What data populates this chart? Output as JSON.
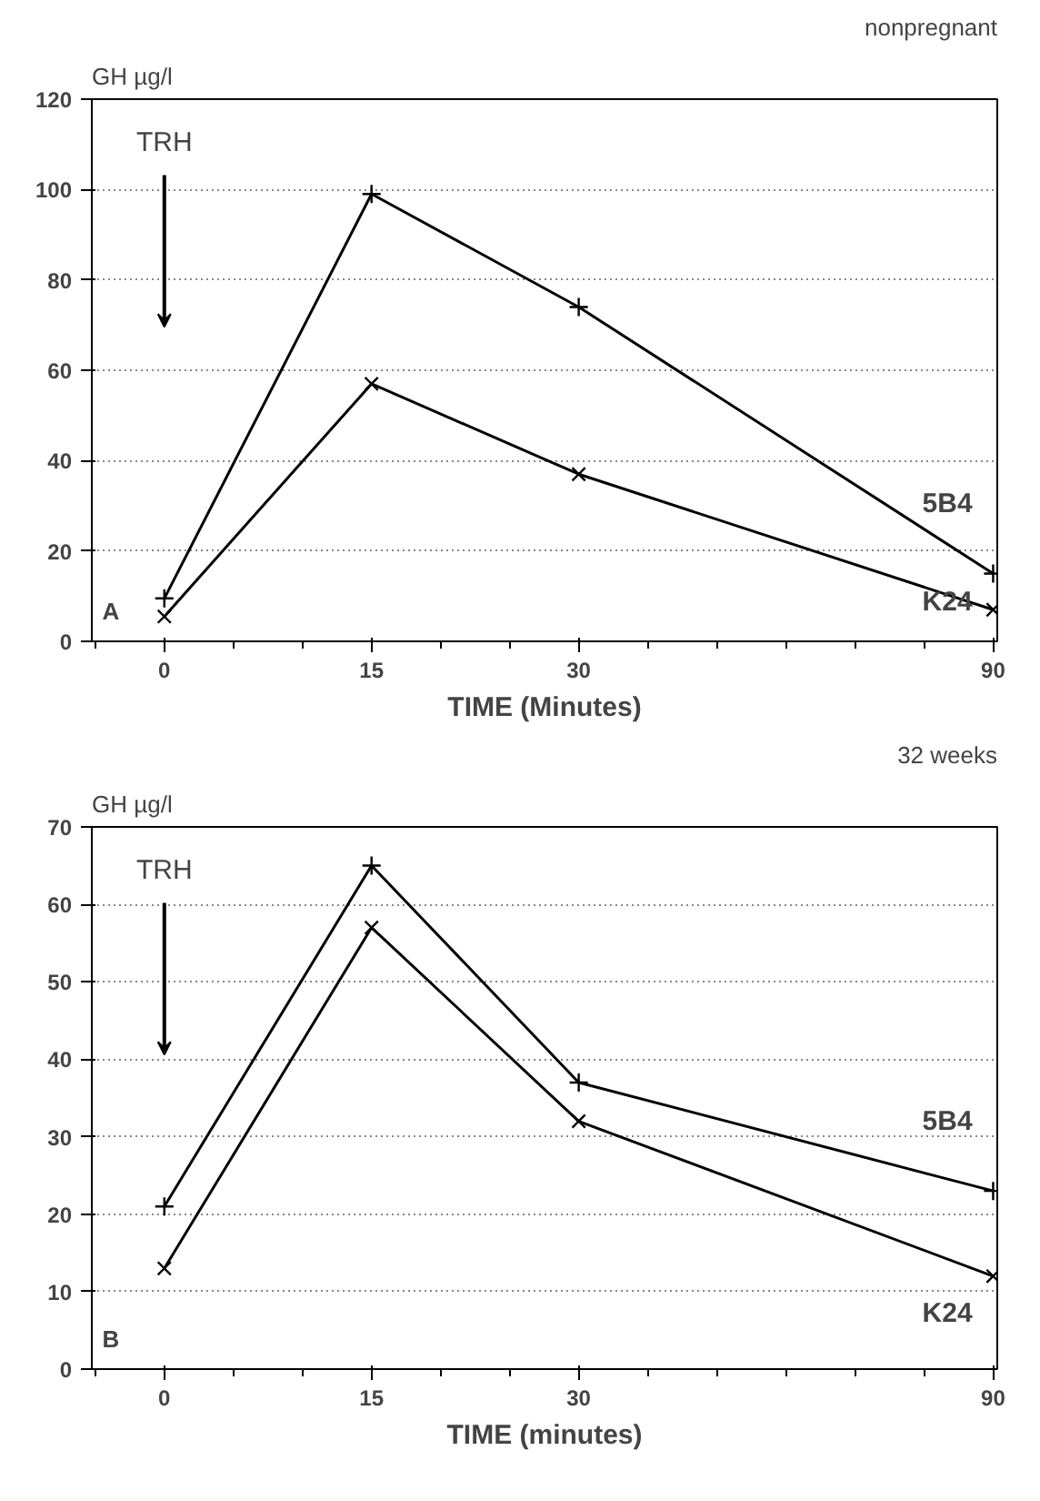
{
  "chart_data": [
    {
      "type": "line",
      "title": "nonpregnant",
      "xlabel": "TIME (Minutes)",
      "ylabel": "GH µg/l",
      "categories": [
        "0",
        "15",
        "30",
        null,
        "90"
      ],
      "ylim": [
        0,
        120
      ],
      "yticks": [
        0,
        20,
        40,
        60,
        80,
        100,
        120
      ],
      "grid": "y",
      "annotations": [
        "TRH",
        "A"
      ],
      "series": [
        {
          "name": "5B4",
          "color": "#000000",
          "marker": "cross",
          "values": [
            9.5,
            99,
            74,
            null,
            15
          ]
        },
        {
          "name": "K24",
          "color": "#000000",
          "marker": "x",
          "values": [
            5.5,
            57,
            37,
            null,
            7
          ]
        }
      ]
    },
    {
      "type": "line",
      "title": "32 weeks",
      "xlabel": "TIME (minutes)",
      "ylabel": "GH µg/l",
      "categories": [
        "0",
        "15",
        "30",
        null,
        "90"
      ],
      "ylim": [
        0,
        70
      ],
      "yticks": [
        0,
        10,
        20,
        30,
        40,
        50,
        60,
        70
      ],
      "grid": "y",
      "annotations": [
        "TRH",
        "B"
      ],
      "series": [
        {
          "name": "5B4",
          "color": "#000000",
          "marker": "cross",
          "values": [
            21,
            65,
            37,
            null,
            23
          ]
        },
        {
          "name": "K24",
          "color": "#000000",
          "marker": "x",
          "values": [
            13,
            57,
            32,
            null,
            12
          ]
        }
      ]
    }
  ]
}
